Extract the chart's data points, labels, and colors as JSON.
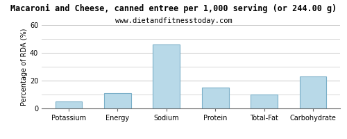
{
  "title": "Macaroni and Cheese, canned entree per 1,000 serving (or 244.00 g)",
  "subtitle": "www.dietandfitnesstoday.com",
  "categories": [
    "Potassium",
    "Energy",
    "Sodium",
    "Protein",
    "Total-Fat",
    "Carbohydrate"
  ],
  "values": [
    5.0,
    11.0,
    46.0,
    15.0,
    10.0,
    23.0
  ],
  "bar_color": "#b8d9e8",
  "bar_edge_color": "#7aafc8",
  "ylabel": "Percentage of RDA (%)",
  "ylim": [
    0,
    60
  ],
  "yticks": [
    0,
    20,
    40,
    60
  ],
  "grid_color": "#c8c8c8",
  "background_color": "#ffffff",
  "plot_bg_color": "#f0f4f8",
  "title_fontsize": 8.5,
  "subtitle_fontsize": 7.5,
  "tick_fontsize": 7,
  "ylabel_fontsize": 7
}
